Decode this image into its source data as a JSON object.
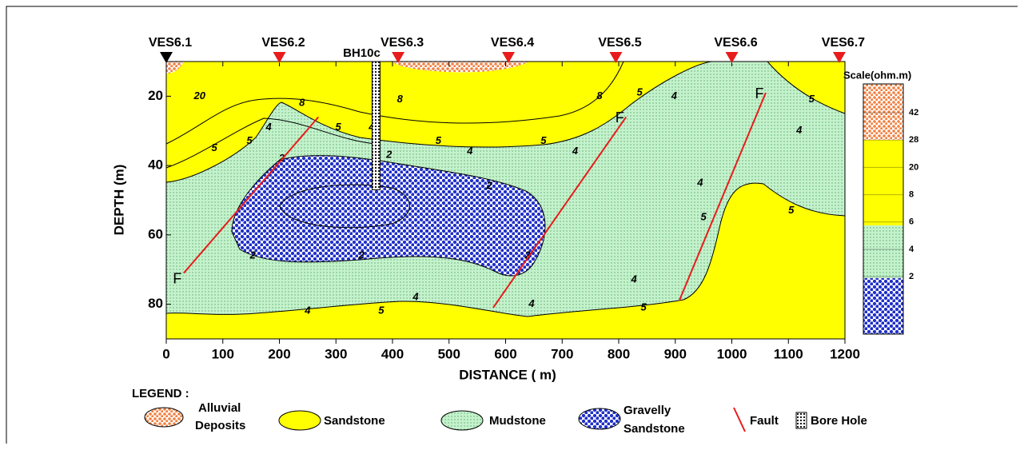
{
  "chart_data": {
    "type": "cross-section",
    "xlabel": "DISTANCE ( m)",
    "ylabel": "DEPTH (m)",
    "xlim": [
      0,
      1200
    ],
    "ylim": [
      10,
      90
    ],
    "y_inverted": true,
    "xticks": [
      0,
      100,
      200,
      300,
      400,
      500,
      600,
      700,
      800,
      900,
      1000,
      1100,
      1200
    ],
    "yticks": [
      20,
      40,
      60,
      80
    ],
    "stations": [
      {
        "label": "VES6.1",
        "x": 0,
        "color": "#000000"
      },
      {
        "label": "VES6.2",
        "x": 200,
        "color": "#e81c1c"
      },
      {
        "label": "VES6.3",
        "x": 410,
        "color": "#e81c1c"
      },
      {
        "label": "VES6.4",
        "x": 605,
        "color": "#e81c1c"
      },
      {
        "label": "VES6.5",
        "x": 795,
        "color": "#e81c1c"
      },
      {
        "label": "VES6.6",
        "x": 1000,
        "color": "#e81c1c"
      },
      {
        "label": "VES6.7",
        "x": 1190,
        "color": "#e81c1c"
      }
    ],
    "borehole": {
      "label": "BH10c",
      "x": 371,
      "depth": 47
    },
    "faults": [
      {
        "label": "F",
        "x": [
          31,
          269
        ],
        "depth": [
          71,
          26
        ],
        "color": "#e81c1c"
      },
      {
        "label": "F",
        "x": [
          578,
          813
        ],
        "depth": [
          81,
          26
        ],
        "color": "#e81c1c"
      },
      {
        "label": "F",
        "x": [
          907,
          1060
        ],
        "depth": [
          79,
          19
        ],
        "color": "#e81c1c"
      }
    ],
    "contour_labels": [
      {
        "label": "20",
        "x": 59,
        "depth": 20
      },
      {
        "label": "8",
        "x": 240,
        "depth": 22
      },
      {
        "label": "5",
        "x": 85,
        "depth": 35
      },
      {
        "label": "5",
        "x": 147,
        "depth": 33
      },
      {
        "label": "4",
        "x": 181,
        "depth": 29
      },
      {
        "label": "5",
        "x": 304,
        "depth": 29
      },
      {
        "label": "4",
        "x": 363,
        "depth": 29
      },
      {
        "label": "8",
        "x": 413,
        "depth": 21
      },
      {
        "label": "5",
        "x": 481,
        "depth": 33
      },
      {
        "label": "4",
        "x": 537,
        "depth": 36
      },
      {
        "label": "5",
        "x": 667,
        "depth": 33
      },
      {
        "label": "4",
        "x": 723,
        "depth": 36
      },
      {
        "label": "8",
        "x": 766,
        "depth": 20
      },
      {
        "label": "5",
        "x": 837,
        "depth": 19
      },
      {
        "label": "4",
        "x": 898,
        "depth": 20
      },
      {
        "label": "5",
        "x": 1141,
        "depth": 21
      },
      {
        "label": "4",
        "x": 1119,
        "depth": 30
      },
      {
        "label": "2",
        "x": 204,
        "depth": 38
      },
      {
        "label": "2",
        "x": 394,
        "depth": 37
      },
      {
        "label": "2",
        "x": 571,
        "depth": 46
      },
      {
        "label": "2",
        "x": 153,
        "depth": 66
      },
      {
        "label": "2",
        "x": 345,
        "depth": 66
      },
      {
        "label": "2",
        "x": 639,
        "depth": 66
      },
      {
        "label": "4",
        "x": 944,
        "depth": 45
      },
      {
        "label": "5",
        "x": 950,
        "depth": 55
      },
      {
        "label": "5",
        "x": 1105,
        "depth": 53
      },
      {
        "label": "4",
        "x": 827,
        "depth": 73
      },
      {
        "label": "4",
        "x": 646,
        "depth": 80
      },
      {
        "label": "4",
        "x": 441,
        "depth": 78
      },
      {
        "label": "4",
        "x": 250,
        "depth": 82
      },
      {
        "label": "5",
        "x": 380,
        "depth": 82
      },
      {
        "label": "5",
        "x": 844,
        "depth": 81
      }
    ],
    "scale": {
      "title": "Scale(ohm.m)",
      "ticks": [
        42,
        28,
        20,
        8,
        6,
        4,
        2
      ]
    },
    "legend": {
      "title": "LEGEND :",
      "items": [
        [
          "Alluvial",
          "Deposits"
        ],
        [
          "Sandstone"
        ],
        [
          "Mudstone"
        ],
        [
          "Gravelly",
          "Sandstone"
        ],
        [
          "Fault"
        ],
        [
          "Bore Hole"
        ]
      ]
    }
  }
}
